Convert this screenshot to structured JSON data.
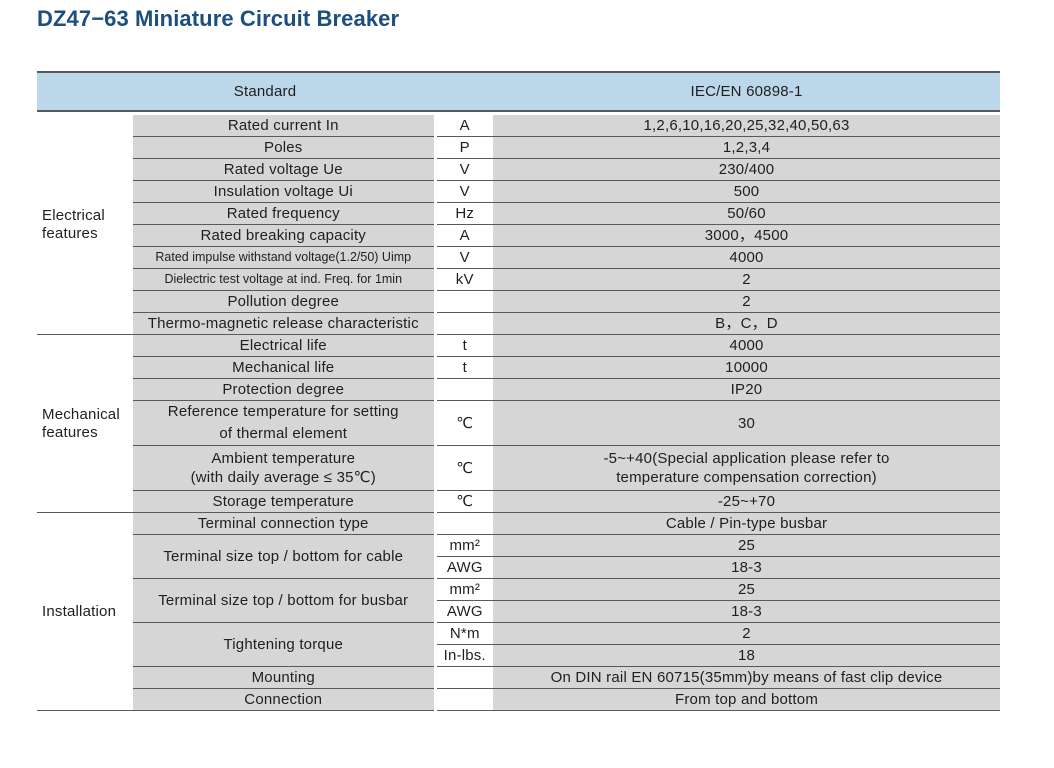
{
  "title": "DZ47−63 Miniature Circuit Breaker",
  "header": {
    "label": "Standard",
    "value": "IEC/EN  60898-1"
  },
  "groups": {
    "electrical": "Electrical\nfeatures",
    "mechanical": "Mechanical\nfeatures",
    "installation": "Installation"
  },
  "rows": {
    "rated_current": {
      "param": "Rated current In",
      "unit": "A",
      "value": "1,2,6,10,16,20,25,32,40,50,63"
    },
    "poles": {
      "param": "Poles",
      "unit": "P",
      "value": "1,2,3,4"
    },
    "rated_voltage": {
      "param": "Rated voltage Ue",
      "unit": "V",
      "value": "230/400"
    },
    "insulation_voltage": {
      "param": "Insulation voltage Ui",
      "unit": "V",
      "value": "500"
    },
    "rated_frequency": {
      "param": "Rated frequency",
      "unit": "Hz",
      "value": "50/60"
    },
    "breaking_capacity": {
      "param": "Rated breaking capacity",
      "unit": "A",
      "value": "3000，4500"
    },
    "impulse_voltage": {
      "param": "Rated impulse withstand voltage(1.2/50) Uimp",
      "unit": "V",
      "value": "4000"
    },
    "dielectric_voltage": {
      "param": "Dielectric test voltage at ind. Freq. for 1min",
      "unit": "kV",
      "value": "2"
    },
    "pollution_degree": {
      "param": "Pollution degree",
      "unit": "",
      "value": "2"
    },
    "release_char": {
      "param": "Thermo-magnetic release characteristic",
      "unit": "",
      "value": "B，C，D"
    },
    "electrical_life": {
      "param": "Electrical life",
      "unit": "t",
      "value": "4000"
    },
    "mechanical_life": {
      "param": "Mechanical life",
      "unit": "t",
      "value": "10000"
    },
    "protection_degree": {
      "param": "Protection degree",
      "unit": "",
      "value": "IP20"
    },
    "reference_temp": {
      "param": "Reference temperature for setting\nof thermal element",
      "unit": "℃",
      "value": "30"
    },
    "ambient_temp": {
      "param": "Ambient temperature\n(with daily average ≤ 35℃)",
      "unit": "℃",
      "value": "-5~+40(Special application please refer to\ntemperature compensation correction)"
    },
    "storage_temp": {
      "param": "Storage temperature",
      "unit": "℃",
      "value": "-25~+70"
    },
    "terminal_type": {
      "param": "Terminal connection type",
      "unit": "",
      "value": "Cable / Pin-type busbar"
    },
    "terminal_cable": {
      "param": "Terminal size top / bottom for cable",
      "unit1": "mm²",
      "value1": "25",
      "unit2": "AWG",
      "value2": "18-3"
    },
    "terminal_busbar": {
      "param": "Terminal size top / bottom for busbar",
      "unit1": "mm²",
      "value1": "25",
      "unit2": "AWG",
      "value2": "18-3"
    },
    "torque": {
      "param": "Tightening torque",
      "unit1": "N*m",
      "value1": "2",
      "unit2": "In-lbs.",
      "value2": "18"
    },
    "mounting": {
      "param": "Mounting",
      "unit": "",
      "value": "On DIN rail EN 60715(35mm)by means of fast clip device"
    },
    "connection": {
      "param": "Connection",
      "unit": "",
      "value": "From top and bottom"
    }
  }
}
